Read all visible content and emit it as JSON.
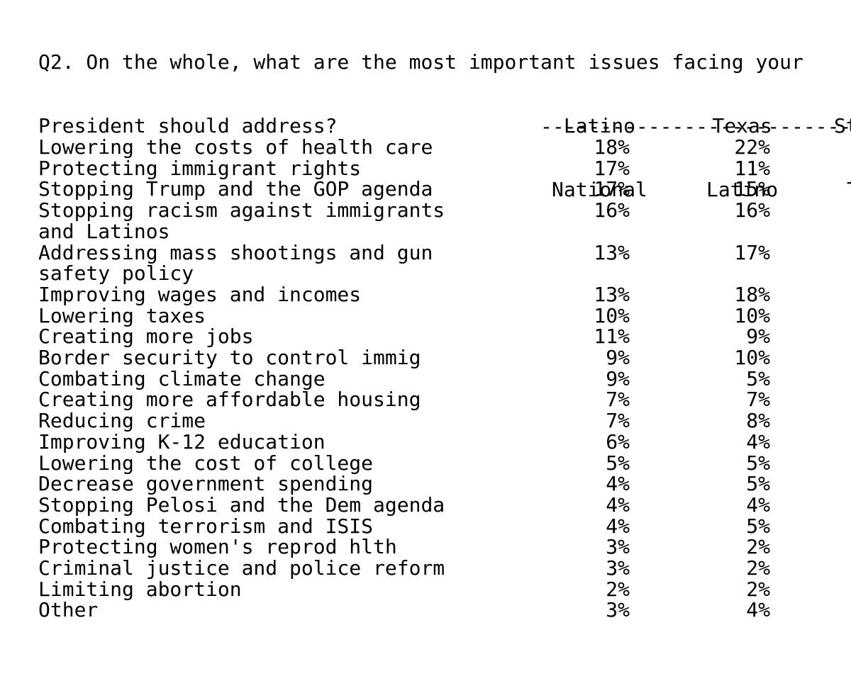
{
  "question": {
    "line1": "Q2. On the whole, what are the most important issues facing your",
    "line2": "President should address?"
  },
  "columns": [
    {
      "line1": "Latino",
      "line2": "National"
    },
    {
      "line1": "Texas",
      "line2": "Latino"
    },
    {
      "line1": "St",
      "line2": "T"
    }
  ],
  "rule": "----------------------------------------",
  "rows": [
    {
      "label": [
        "Lowering the costs of health care"
      ],
      "values": [
        "18%",
        "22%"
      ]
    },
    {
      "label": [
        "Protecting immigrant rights"
      ],
      "values": [
        "17%",
        "11%"
      ]
    },
    {
      "label": [
        "Stopping Trump and the GOP agenda"
      ],
      "values": [
        "17%",
        "15%"
      ]
    },
    {
      "label": [
        "Stopping racism against immigrants",
        "and Latinos"
      ],
      "values": [
        "16%",
        "16%"
      ]
    },
    {
      "label": [
        "Addressing mass shootings and gun",
        "safety policy"
      ],
      "values": [
        "13%",
        "17%"
      ]
    },
    {
      "label": [
        "Improving wages and incomes"
      ],
      "values": [
        "13%",
        "18%"
      ]
    },
    {
      "label": [
        "Lowering taxes"
      ],
      "values": [
        "10%",
        "10%"
      ]
    },
    {
      "label": [
        "Creating more jobs"
      ],
      "values": [
        "11%",
        "9%"
      ]
    },
    {
      "label": [
        "Border security to control immig"
      ],
      "values": [
        "9%",
        "10%"
      ]
    },
    {
      "label": [
        "Combating climate change"
      ],
      "values": [
        "9%",
        "5%"
      ]
    },
    {
      "label": [
        "Creating more affordable housing"
      ],
      "values": [
        "7%",
        "7%"
      ]
    },
    {
      "label": [
        "Reducing crime"
      ],
      "values": [
        "7%",
        "8%"
      ]
    },
    {
      "label": [
        "Improving K-12 education"
      ],
      "values": [
        "6%",
        "4%"
      ]
    },
    {
      "label": [
        "Lowering the cost of college"
      ],
      "values": [
        "5%",
        "5%"
      ]
    },
    {
      "label": [
        "Decrease government spending"
      ],
      "values": [
        "4%",
        "5%"
      ]
    },
    {
      "label": [
        "Stopping Pelosi and the Dem agenda"
      ],
      "values": [
        "4%",
        "4%"
      ]
    },
    {
      "label": [
        "Combating terrorism and ISIS"
      ],
      "values": [
        "4%",
        "5%"
      ]
    },
    {
      "label": [
        "Protecting women's reprod hlth"
      ],
      "values": [
        "3%",
        "2%"
      ]
    },
    {
      "label": [
        "Criminal justice and police reform"
      ],
      "values": [
        "3%",
        "2%"
      ]
    },
    {
      "label": [
        "Limiting abortion"
      ],
      "values": [
        "2%",
        "2%"
      ]
    },
    {
      "label": [
        "Other"
      ],
      "values": [
        "3%",
        "4%"
      ]
    }
  ]
}
